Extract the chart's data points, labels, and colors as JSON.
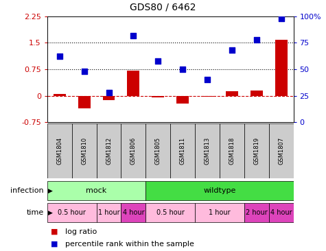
{
  "title": "GDS80 / 6462",
  "samples": [
    "GSM1804",
    "GSM1810",
    "GSM1812",
    "GSM1806",
    "GSM1805",
    "GSM1811",
    "GSM1813",
    "GSM1818",
    "GSM1819",
    "GSM1807"
  ],
  "log_ratio": [
    0.05,
    -0.35,
    -0.12,
    0.72,
    -0.05,
    -0.22,
    -0.03,
    0.12,
    0.15,
    1.58
  ],
  "percentile_rank": [
    62,
    48,
    28,
    82,
    58,
    50,
    40,
    68,
    78,
    98
  ],
  "ylim_left": [
    -0.75,
    2.25
  ],
  "ylim_right": [
    0,
    100
  ],
  "yticks_left": [
    -0.75,
    0,
    0.75,
    1.5,
    2.25
  ],
  "yticks_right": [
    0,
    25,
    50,
    75,
    100
  ],
  "hlines": [
    0.75,
    1.5
  ],
  "bar_color": "#cc0000",
  "scatter_color": "#0000cc",
  "zero_line_color": "#cc0000",
  "hline_color": "black",
  "infection_labels": [
    {
      "text": "mock",
      "start": 0,
      "end": 4,
      "color": "#aaffaa"
    },
    {
      "text": "wildtype",
      "start": 4,
      "end": 10,
      "color": "#44dd44"
    }
  ],
  "time_labels": [
    {
      "text": "0.5 hour",
      "start": 0,
      "end": 2,
      "color": "#ffbbdd"
    },
    {
      "text": "1 hour",
      "start": 2,
      "end": 3,
      "color": "#ffbbdd"
    },
    {
      "text": "4 hour",
      "start": 3,
      "end": 4,
      "color": "#dd44bb"
    },
    {
      "text": "0.5 hour",
      "start": 4,
      "end": 6,
      "color": "#ffbbdd"
    },
    {
      "text": "1 hour",
      "start": 6,
      "end": 8,
      "color": "#ffbbdd"
    },
    {
      "text": "2 hour",
      "start": 8,
      "end": 9,
      "color": "#dd44bb"
    },
    {
      "text": "4 hour",
      "start": 9,
      "end": 10,
      "color": "#dd44bb"
    }
  ]
}
